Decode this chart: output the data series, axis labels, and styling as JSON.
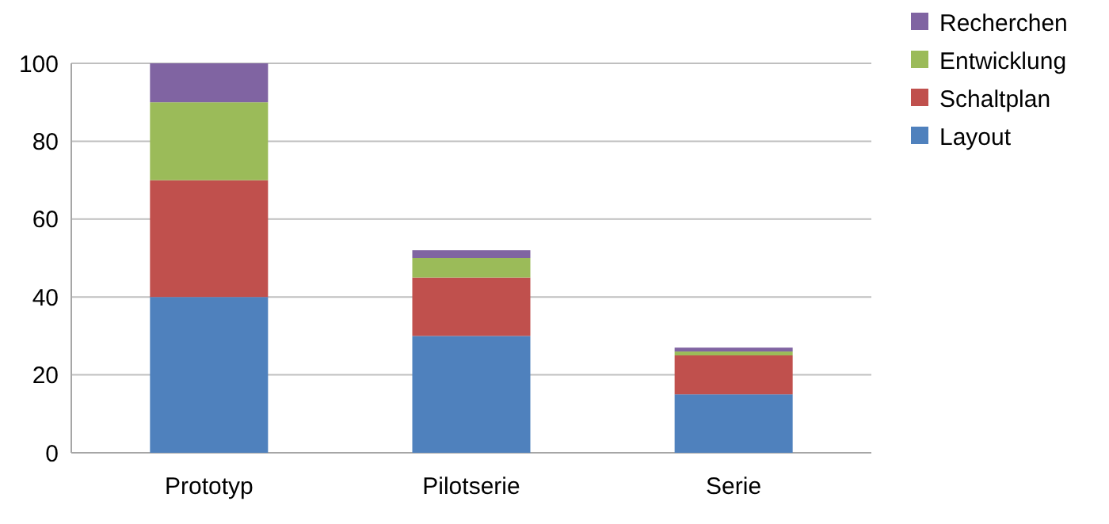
{
  "chart_data": {
    "type": "bar",
    "stacked": true,
    "categories": [
      "Prototyp",
      "Pilotserie",
      "Serie"
    ],
    "series": [
      {
        "name": "Layout",
        "color": "#4f81bd",
        "values": [
          40,
          30,
          15
        ]
      },
      {
        "name": "Schaltplan",
        "color": "#c0504d",
        "values": [
          30,
          15,
          10
        ]
      },
      {
        "name": "Entwicklung",
        "color": "#9bbb59",
        "values": [
          20,
          5,
          1
        ]
      },
      {
        "name": "Recherchen",
        "color": "#8064a2",
        "values": [
          10,
          2,
          1
        ]
      }
    ],
    "ylim": [
      0,
      100
    ],
    "yticks": [
      0,
      20,
      40,
      60,
      80,
      100
    ],
    "grid": "y",
    "legend": "top right"
  }
}
